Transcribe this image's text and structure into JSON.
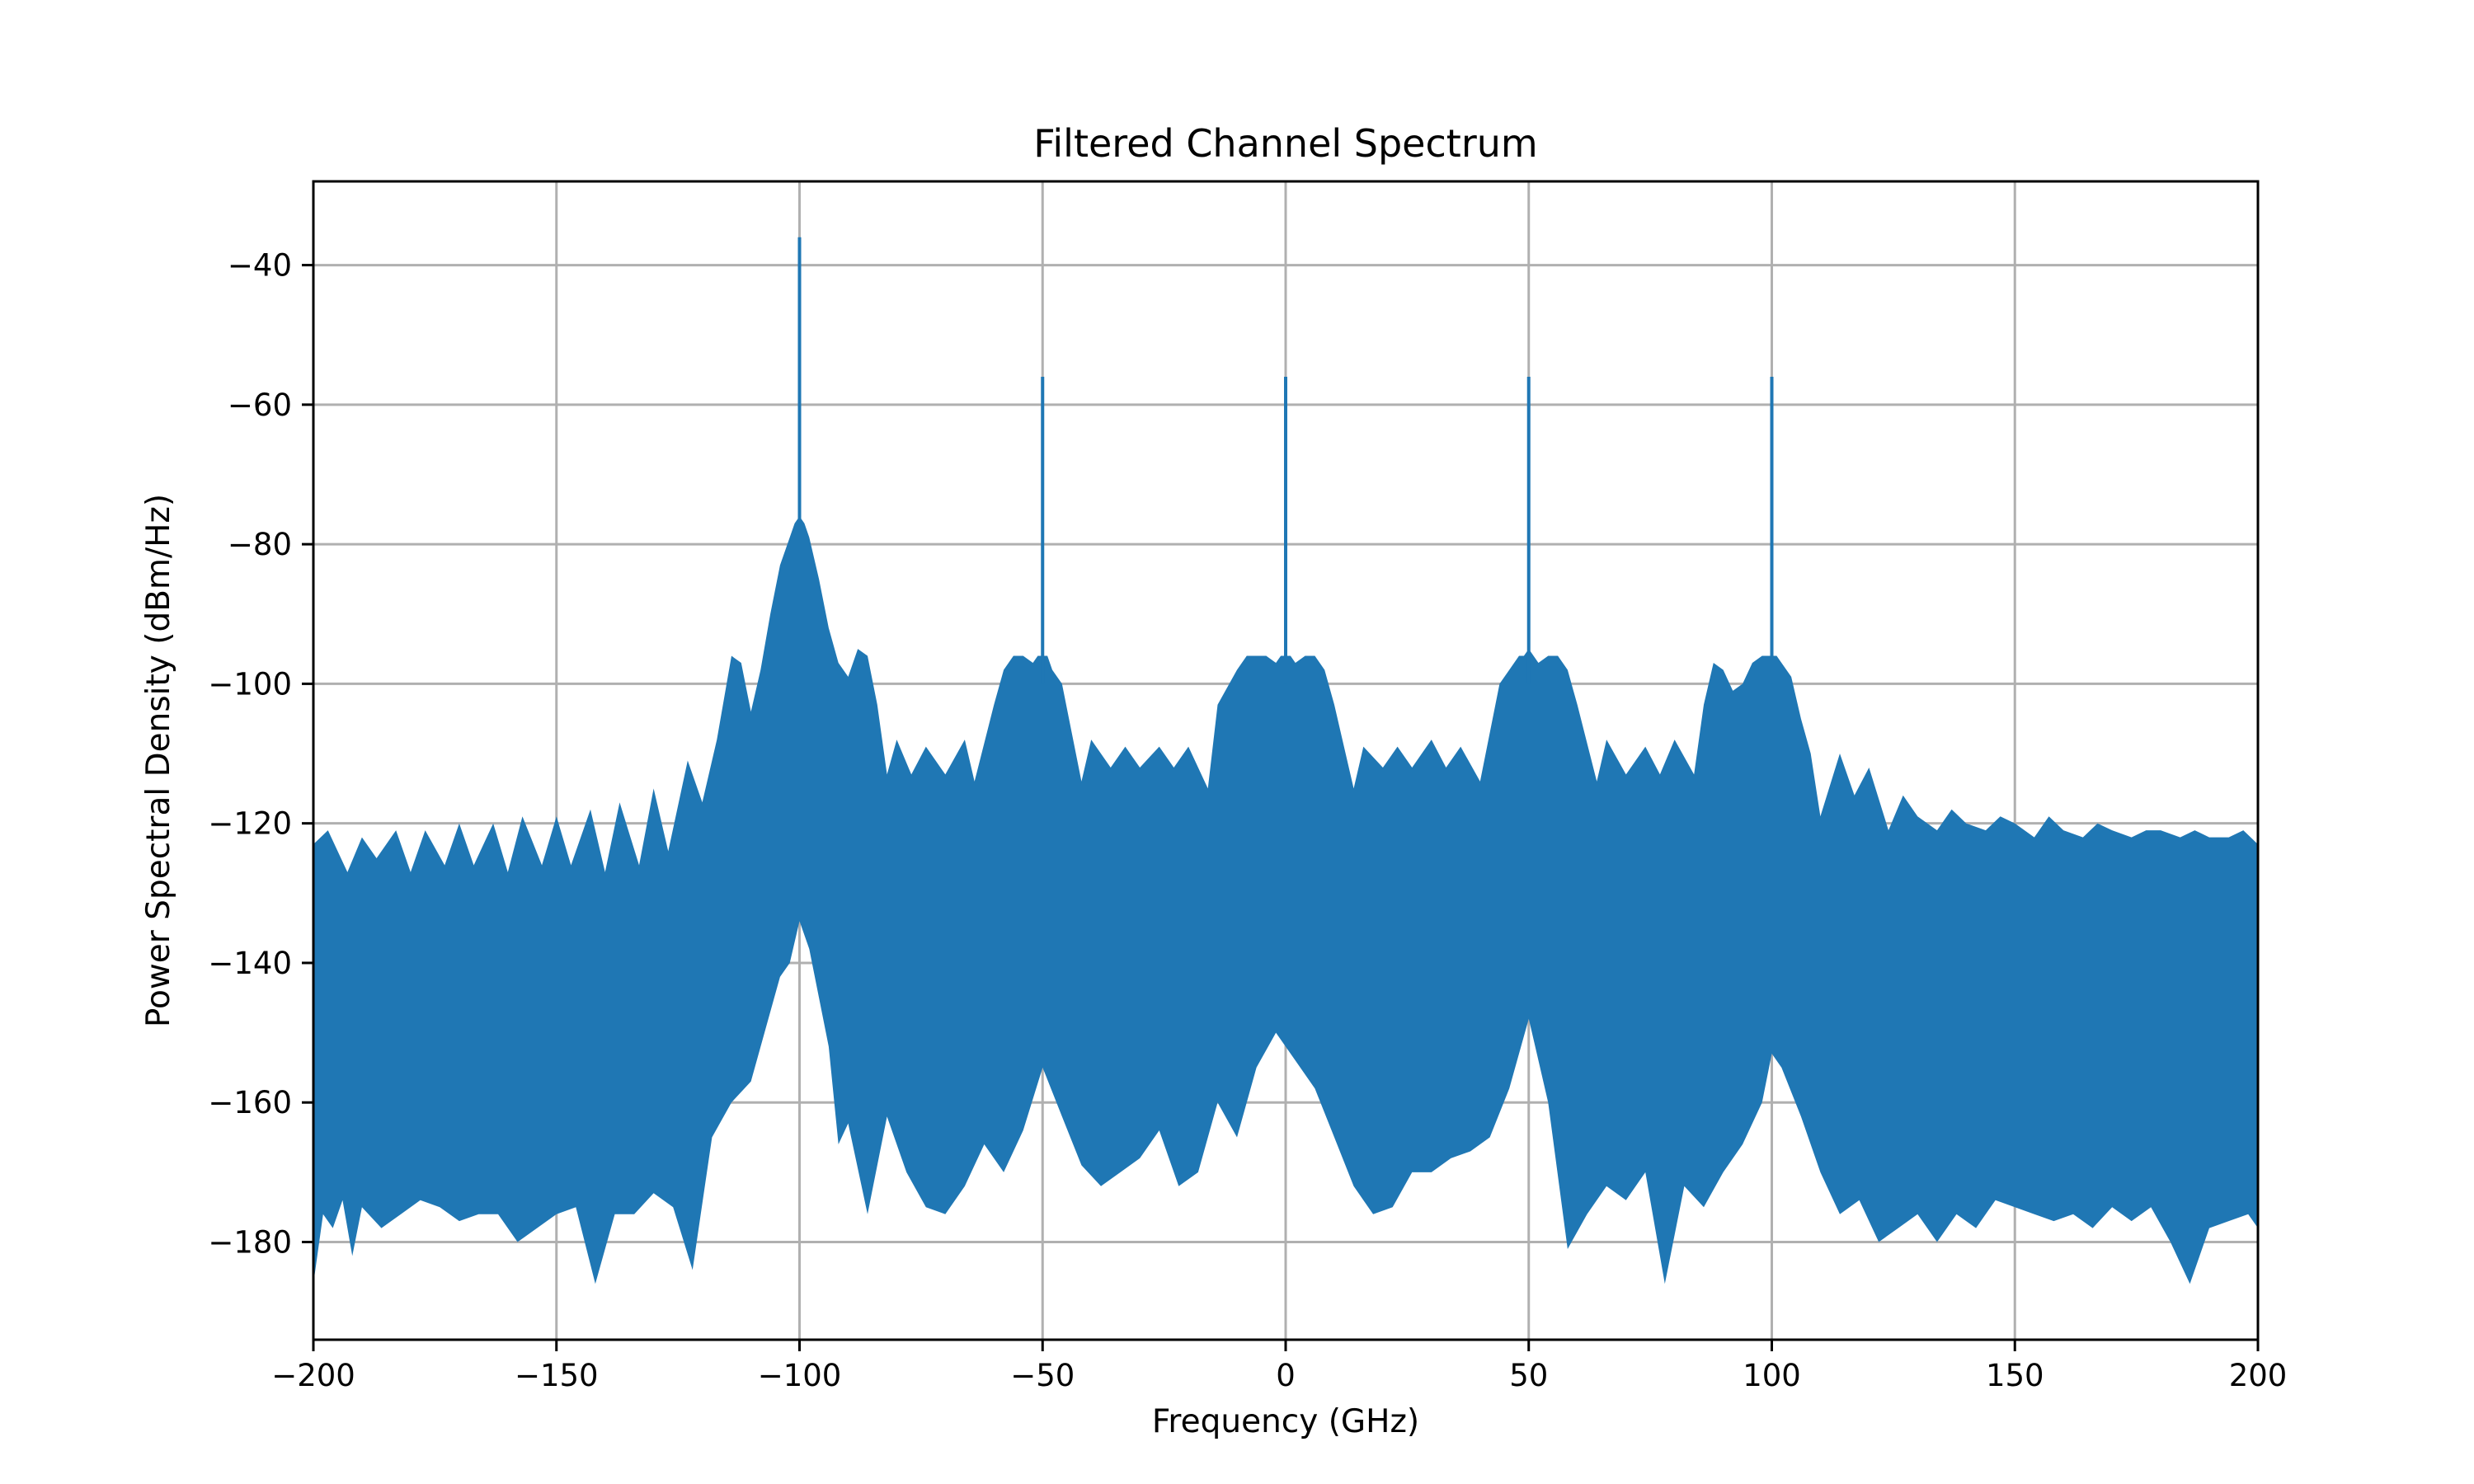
{
  "chart_data": {
    "type": "area",
    "title": "Filtered Channel Spectrum",
    "xlabel": "Frequency (GHz)",
    "ylabel": "Power Spectral Density (dBm/Hz)",
    "xlim": [
      -200,
      200
    ],
    "ylim": [
      -194,
      -28
    ],
    "xticks": [
      -200,
      -150,
      -100,
      -50,
      0,
      50,
      100,
      150,
      200
    ],
    "yticks": [
      -180,
      -160,
      -140,
      -120,
      -100,
      -80,
      -60,
      -40
    ],
    "xtick_labels": [
      "−200",
      "−150",
      "−100",
      "−50",
      "0",
      "50",
      "100",
      "150",
      "200"
    ],
    "ytick_labels": [
      "−180",
      "−160",
      "−140",
      "−120",
      "−100",
      "−80",
      "−60",
      "−40"
    ],
    "grid": true,
    "legend": "none",
    "line_color": "#1f77b4",
    "series": [
      {
        "kind": "spectrum-upper-envelope",
        "x": [
          -200,
          -197,
          -193,
          -190,
          -187,
          -183,
          -180,
          -177,
          -173,
          -170,
          -167,
          -163,
          -160,
          -157,
          -153,
          -150,
          -147,
          -143,
          -140,
          -137,
          -133,
          -130,
          -127,
          -123,
          -120,
          -117,
          -114,
          -112,
          -110,
          -108,
          -106,
          -104,
          -102,
          -101,
          -100,
          -99,
          -98,
          -96,
          -94,
          -92,
          -90,
          -88,
          -86,
          -84,
          -82,
          -80,
          -77,
          -74,
          -70,
          -66,
          -64,
          -60,
          -58,
          -56,
          -54,
          -52,
          -51,
          -50,
          -49,
          -48,
          -46,
          -44,
          -42,
          -40,
          -36,
          -33,
          -30,
          -26,
          -23,
          -20,
          -16,
          -14,
          -10,
          -8,
          -6,
          -4,
          -2,
          -1,
          0,
          1,
          2,
          4,
          6,
          8,
          10,
          14,
          16,
          20,
          23,
          26,
          30,
          33,
          36,
          40,
          42,
          44,
          46,
          48,
          49,
          50,
          51,
          52,
          54,
          56,
          58,
          60,
          64,
          66,
          70,
          74,
          77,
          80,
          84,
          86,
          88,
          90,
          92,
          94,
          96,
          98,
          99,
          100,
          101,
          102,
          104,
          106,
          108,
          110,
          114,
          117,
          120,
          124,
          127,
          130,
          134,
          137,
          140,
          144,
          147,
          150,
          154,
          157,
          160,
          164,
          167,
          170,
          174,
          177,
          180,
          184,
          187,
          190,
          194,
          197,
          200
        ],
        "y": [
          -123,
          -121,
          -127,
          -122,
          -125,
          -121,
          -127,
          -121,
          -126,
          -120,
          -126,
          -120,
          -127,
          -119,
          -126,
          -119,
          -126,
          -118,
          -127,
          -117,
          -126,
          -115,
          -124,
          -111,
          -117,
          -108,
          -96,
          -97,
          -104,
          -98,
          -90,
          -83,
          -79,
          -77,
          -76,
          -77,
          -79,
          -85,
          -92,
          -97,
          -99,
          -95,
          -96,
          -103,
          -113,
          -108,
          -113,
          -109,
          -113,
          -108,
          -114,
          -103,
          -98,
          -96,
          -96,
          -97,
          -96,
          -96,
          -96,
          -98,
          -100,
          -107,
          -114,
          -108,
          -112,
          -109,
          -112,
          -109,
          -112,
          -109,
          -115,
          -103,
          -98,
          -96,
          -96,
          -96,
          -97,
          -96,
          -96,
          -96,
          -97,
          -96,
          -96,
          -98,
          -103,
          -115,
          -109,
          -112,
          -109,
          -112,
          -108,
          -112,
          -109,
          -114,
          -107,
          -100,
          -98,
          -96,
          -96,
          -95,
          -96,
          -97,
          -96,
          -96,
          -98,
          -103,
          -114,
          -108,
          -113,
          -109,
          -113,
          -108,
          -113,
          -103,
          -97,
          -98,
          -101,
          -100,
          -97,
          -96,
          -96,
          -96,
          -96,
          -97,
          -99,
          -105,
          -110,
          -119,
          -110,
          -116,
          -112,
          -121,
          -116,
          -119,
          -121,
          -118,
          -120,
          -121,
          -119,
          -120,
          -122,
          -119,
          -121,
          -122,
          -120,
          -121,
          -122,
          -121,
          -121,
          -122,
          -121,
          -122,
          -122,
          -121,
          -123
        ]
      },
      {
        "kind": "spectrum-lower-envelope",
        "x": [
          -200,
          -198,
          -196,
          -194,
          -192,
          -190,
          -186,
          -182,
          -178,
          -174,
          -170,
          -166,
          -162,
          -158,
          -154,
          -150,
          -146,
          -142,
          -138,
          -134,
          -130,
          -126,
          -122,
          -118,
          -114,
          -110,
          -106,
          -104,
          -102,
          -100,
          -98,
          -96,
          -94,
          -92,
          -90,
          -86,
          -82,
          -78,
          -74,
          -70,
          -66,
          -62,
          -58,
          -54,
          -50,
          -46,
          -42,
          -38,
          -34,
          -30,
          -26,
          -22,
          -18,
          -14,
          -10,
          -6,
          -2,
          0,
          2,
          6,
          10,
          14,
          18,
          22,
          26,
          30,
          34,
          38,
          42,
          46,
          50,
          54,
          58,
          62,
          66,
          70,
          74,
          78,
          82,
          86,
          90,
          94,
          98,
          100,
          102,
          106,
          110,
          114,
          118,
          122,
          126,
          130,
          134,
          138,
          142,
          146,
          150,
          154,
          158,
          162,
          166,
          170,
          174,
          178,
          182,
          186,
          190,
          194,
          198,
          200
        ],
        "y": [
          -186,
          -176,
          -178,
          -174,
          -182,
          -175,
          -178,
          -176,
          -174,
          -175,
          -177,
          -176,
          -176,
          -180,
          -178,
          -176,
          -175,
          -186,
          -176,
          -176,
          -173,
          -175,
          -184,
          -165,
          -160,
          -157,
          -147,
          -142,
          -140,
          -134,
          -138,
          -145,
          -152,
          -166,
          -163,
          -176,
          -162,
          -170,
          -175,
          -176,
          -172,
          -166,
          -170,
          -164,
          -155,
          -162,
          -169,
          -172,
          -170,
          -168,
          -164,
          -172,
          -170,
          -160,
          -165,
          -155,
          -150,
          -152,
          -154,
          -158,
          -165,
          -172,
          -176,
          -175,
          -170,
          -170,
          -168,
          -167,
          -165,
          -158,
          -148,
          -160,
          -181,
          -176,
          -172,
          -174,
          -170,
          -186,
          -172,
          -175,
          -170,
          -166,
          -160,
          -153,
          -155,
          -162,
          -170,
          -176,
          -174,
          -180,
          -178,
          -176,
          -180,
          -176,
          -178,
          -174,
          -175,
          -176,
          -177,
          -176,
          -178,
          -175,
          -177,
          -175,
          -180,
          -186,
          -178,
          -177,
          -176,
          -178
        ]
      },
      {
        "kind": "carrier-spikes",
        "x": [
          -100,
          -50,
          0,
          50,
          100
        ],
        "y": [
          -36,
          -56,
          -56,
          -56,
          -56
        ]
      }
    ]
  }
}
